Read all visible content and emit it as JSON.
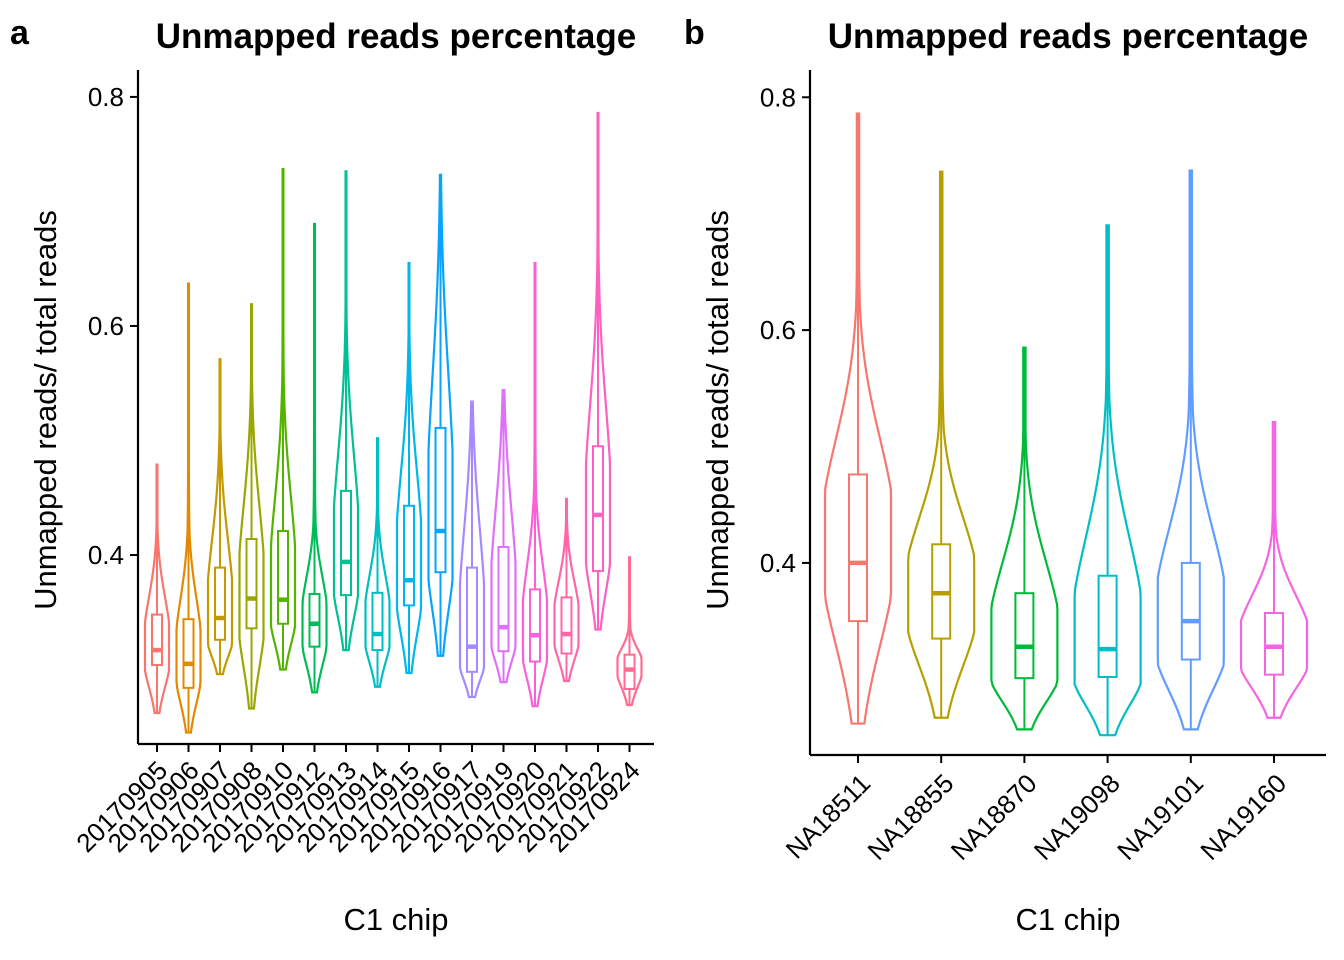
{
  "chart_data": [
    {
      "type": "violin",
      "panel_label": "a",
      "title": "Unmapped reads percentage",
      "xlabel": "C1 chip",
      "ylabel": "Unmapped reads/ total reads",
      "ylim": [
        0.235,
        0.82
      ],
      "yticks": [
        0.4,
        0.6,
        0.8
      ],
      "ytick_labels": [
        "0.4",
        "0.6",
        "0.8"
      ],
      "groups": [
        {
          "label": "20170905",
          "color": "#F8766D",
          "min": 0.262,
          "max": 0.479,
          "q1": 0.304,
          "median": 0.317,
          "q3": 0.348,
          "mode": 0.31,
          "bulge": 0.012
        },
        {
          "label": "20170906",
          "color": "#E38900",
          "min": 0.245,
          "max": 0.637,
          "q1": 0.284,
          "median": 0.305,
          "q3": 0.344,
          "mode": 0.3,
          "bulge": 0.012
        },
        {
          "label": "20170907",
          "color": "#C49A00",
          "min": 0.296,
          "max": 0.571,
          "q1": 0.326,
          "median": 0.345,
          "q3": 0.389,
          "mode": 0.33,
          "bulge": 0.012
        },
        {
          "label": "20170908",
          "color": "#99A800",
          "min": 0.266,
          "max": 0.619,
          "q1": 0.336,
          "median": 0.362,
          "q3": 0.414,
          "mode": 0.345,
          "bulge": 0.012
        },
        {
          "label": "20170910",
          "color": "#53B400",
          "min": 0.3,
          "max": 0.737,
          "q1": 0.34,
          "median": 0.361,
          "q3": 0.421,
          "mode": 0.35,
          "bulge": 0.012
        },
        {
          "label": "20170912",
          "color": "#00BC56",
          "min": 0.28,
          "max": 0.689,
          "q1": 0.32,
          "median": 0.34,
          "q3": 0.366,
          "mode": 0.33,
          "bulge": 0.012
        },
        {
          "label": "20170913",
          "color": "#00C094",
          "min": 0.317,
          "max": 0.735,
          "q1": 0.365,
          "median": 0.394,
          "q3": 0.456,
          "mode": 0.38,
          "bulge": 0.012
        },
        {
          "label": "20170914",
          "color": "#00BFC4",
          "min": 0.285,
          "max": 0.502,
          "q1": 0.317,
          "median": 0.331,
          "q3": 0.367,
          "mode": 0.33,
          "bulge": 0.012
        },
        {
          "label": "20170915",
          "color": "#00B6EB",
          "min": 0.297,
          "max": 0.655,
          "q1": 0.356,
          "median": 0.378,
          "q3": 0.443,
          "mode": 0.37,
          "bulge": 0.012
        },
        {
          "label": "20170916",
          "color": "#06A4FF",
          "min": 0.312,
          "max": 0.732,
          "q1": 0.385,
          "median": 0.421,
          "q3": 0.511,
          "mode": 0.4,
          "bulge": 0.012
        },
        {
          "label": "20170917",
          "color": "#A58AFF",
          "min": 0.276,
          "max": 0.534,
          "q1": 0.298,
          "median": 0.32,
          "q3": 0.389,
          "mode": 0.31,
          "bulge": 0.012
        },
        {
          "label": "20170919",
          "color": "#DF70F8",
          "min": 0.289,
          "max": 0.544,
          "q1": 0.316,
          "median": 0.337,
          "q3": 0.407,
          "mode": 0.33,
          "bulge": 0.012
        },
        {
          "label": "20170920",
          "color": "#FB61D7",
          "min": 0.268,
          "max": 0.655,
          "q1": 0.307,
          "median": 0.33,
          "q3": 0.37,
          "mode": 0.32,
          "bulge": 0.012
        },
        {
          "label": "20170921",
          "color": "#FF66A8",
          "min": 0.29,
          "max": 0.449,
          "q1": 0.314,
          "median": 0.331,
          "q3": 0.363,
          "mode": 0.33,
          "bulge": 0.012
        },
        {
          "label": "20170922",
          "color": "#FF5FBF",
          "min": 0.335,
          "max": 0.786,
          "q1": 0.386,
          "median": 0.435,
          "q3": 0.495,
          "mode": 0.41,
          "bulge": 0.012
        },
        {
          "label": "20170924",
          "color": "#FF6C91",
          "min": 0.269,
          "max": 0.398,
          "q1": 0.283,
          "median": 0.3,
          "q3": 0.313,
          "mode": 0.3,
          "bulge": 0.012
        }
      ]
    },
    {
      "type": "violin",
      "panel_label": "b",
      "title": "Unmapped reads percentage",
      "xlabel": "C1 chip",
      "ylabel": "Unmapped reads/ total reads",
      "ylim": [
        0.235,
        0.82
      ],
      "yticks": [
        0.4,
        0.6,
        0.8
      ],
      "ytick_labels": [
        "0.4",
        "0.6",
        "0.8"
      ],
      "groups": [
        {
          "label": "NA18511",
          "color": "#F8766D",
          "min": 0.262,
          "max": 0.786,
          "q1": 0.35,
          "median": 0.4,
          "q3": 0.476,
          "mode": 0.4,
          "bulge": 0.01
        },
        {
          "label": "NA18855",
          "color": "#B79F00",
          "min": 0.267,
          "max": 0.736,
          "q1": 0.335,
          "median": 0.374,
          "q3": 0.416,
          "mode": 0.36,
          "bulge": 0.012
        },
        {
          "label": "NA18870",
          "color": "#00BA38",
          "min": 0.257,
          "max": 0.585,
          "q1": 0.301,
          "median": 0.328,
          "q3": 0.374,
          "mode": 0.31,
          "bulge": 0.012
        },
        {
          "label": "NA19098",
          "color": "#00BFC4",
          "min": 0.252,
          "max": 0.69,
          "q1": 0.302,
          "median": 0.326,
          "q3": 0.389,
          "mode": 0.31,
          "bulge": 0.012
        },
        {
          "label": "NA19101",
          "color": "#619CFF",
          "min": 0.257,
          "max": 0.737,
          "q1": 0.317,
          "median": 0.35,
          "q3": 0.4,
          "mode": 0.33,
          "bulge": 0.012
        },
        {
          "label": "NA19160",
          "color": "#F564E3",
          "min": 0.267,
          "max": 0.521,
          "q1": 0.304,
          "median": 0.328,
          "q3": 0.357,
          "mode": 0.32,
          "bulge": 0.012
        }
      ]
    }
  ]
}
